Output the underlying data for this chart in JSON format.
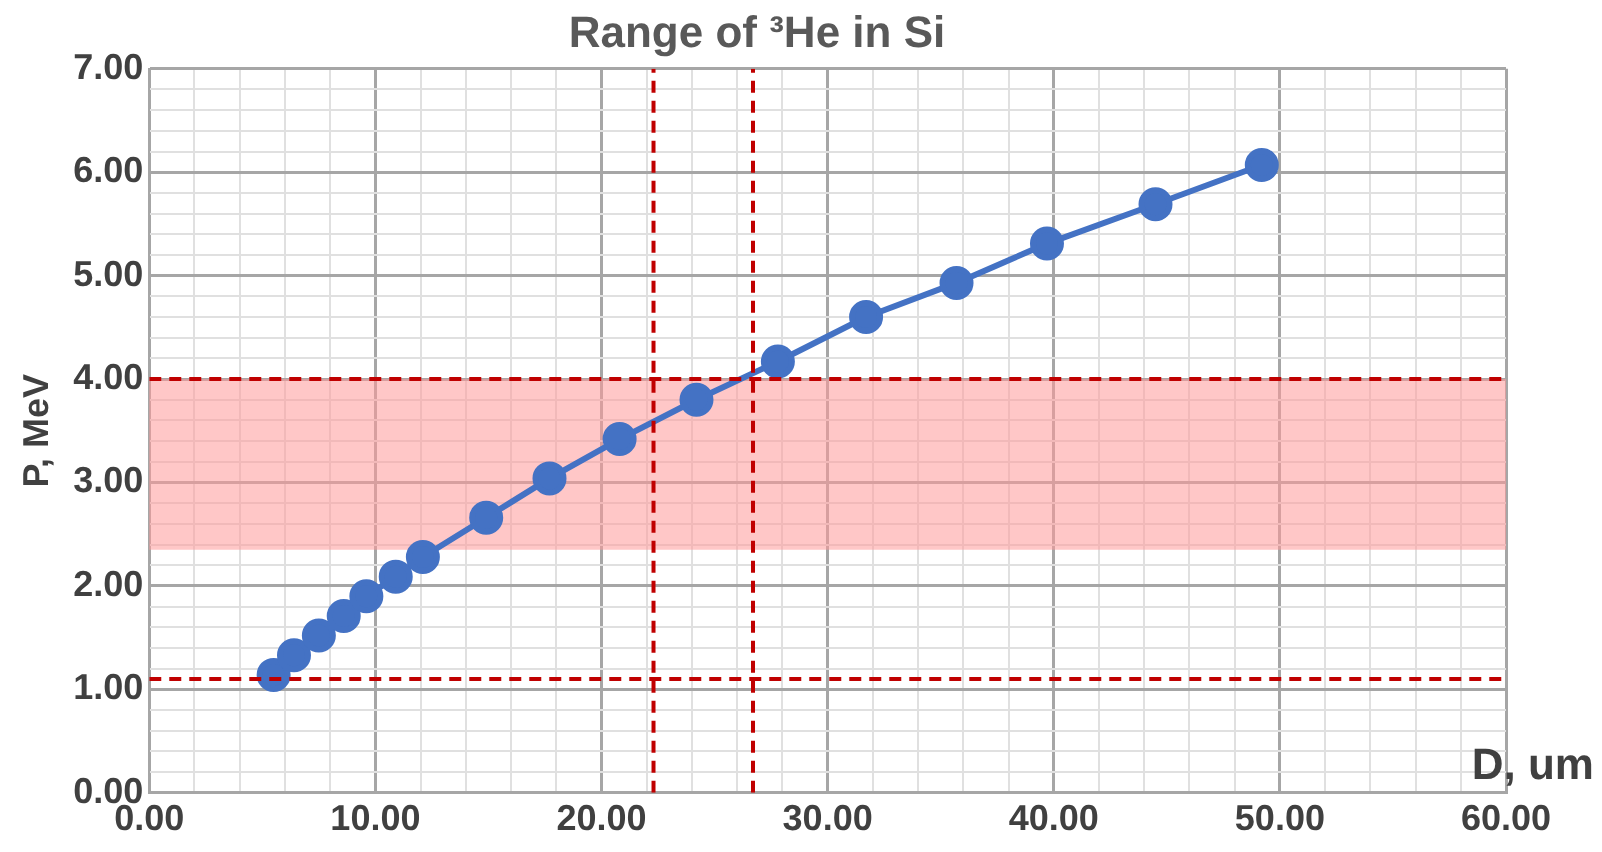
{
  "chart_data": {
    "type": "line",
    "title": "Range of ³He in Si",
    "xlabel": "D, um",
    "ylabel": "P, MeV",
    "x": [
      5.5,
      6.4,
      7.5,
      8.6,
      9.6,
      10.9,
      12.1,
      14.9,
      17.7,
      20.8,
      24.2,
      27.8,
      31.7,
      35.7,
      39.7,
      44.5,
      49.2
    ],
    "series": [
      {
        "color": "#4472c4",
        "values": [
          1.14,
          1.33,
          1.52,
          1.71,
          1.9,
          2.09,
          2.28,
          2.66,
          3.04,
          3.42,
          3.8,
          4.17,
          4.6,
          4.93,
          5.31,
          5.69,
          6.07
        ]
      }
    ],
    "xlim": [
      0,
      60
    ],
    "ylim": [
      0,
      7
    ],
    "xticks": [
      {
        "value": 0,
        "label": "0.00"
      },
      {
        "value": 2,
        "label": null
      },
      {
        "value": 4,
        "label": null
      },
      {
        "value": 6,
        "label": null
      },
      {
        "value": 8,
        "label": null
      },
      {
        "value": 10,
        "label": "10.00"
      },
      {
        "value": 12,
        "label": null
      },
      {
        "value": 14,
        "label": null
      },
      {
        "value": 16,
        "label": null
      },
      {
        "value": 18,
        "label": null
      },
      {
        "value": 20,
        "label": "20.00"
      },
      {
        "value": 22,
        "label": null
      },
      {
        "value": 24,
        "label": null
      },
      {
        "value": 26,
        "label": null
      },
      {
        "value": 28,
        "label": null
      },
      {
        "value": 30,
        "label": "30.00"
      },
      {
        "value": 32,
        "label": null
      },
      {
        "value": 34,
        "label": null
      },
      {
        "value": 36,
        "label": null
      },
      {
        "value": 38,
        "label": null
      },
      {
        "value": 40,
        "label": "40.00"
      },
      {
        "value": 42,
        "label": null
      },
      {
        "value": 44,
        "label": null
      },
      {
        "value": 46,
        "label": null
      },
      {
        "value": 48,
        "label": null
      },
      {
        "value": 50,
        "label": "50.00"
      },
      {
        "value": 52,
        "label": null
      },
      {
        "value": 54,
        "label": null
      },
      {
        "value": 56,
        "label": null
      },
      {
        "value": 58,
        "label": null
      },
      {
        "value": 60,
        "label": "60.00"
      }
    ],
    "yticks": [
      {
        "value": 0,
        "label": "0.00"
      },
      {
        "value": 0.2,
        "label": null
      },
      {
        "value": 0.4,
        "label": null
      },
      {
        "value": 0.6,
        "label": null
      },
      {
        "value": 0.8,
        "label": null
      },
      {
        "value": 1,
        "label": "1.00"
      },
      {
        "value": 1.2,
        "label": null
      },
      {
        "value": 1.4,
        "label": null
      },
      {
        "value": 1.6,
        "label": null
      },
      {
        "value": 1.8,
        "label": null
      },
      {
        "value": 2,
        "label": "2.00"
      },
      {
        "value": 2.2,
        "label": null
      },
      {
        "value": 2.4,
        "label": null
      },
      {
        "value": 2.6,
        "label": null
      },
      {
        "value": 2.8,
        "label": null
      },
      {
        "value": 3,
        "label": "3.00"
      },
      {
        "value": 3.2,
        "label": null
      },
      {
        "value": 3.4,
        "label": null
      },
      {
        "value": 3.6,
        "label": null
      },
      {
        "value": 3.8,
        "label": null
      },
      {
        "value": 4,
        "label": "4.00"
      },
      {
        "value": 4.2,
        "label": null
      },
      {
        "value": 4.4,
        "label": null
      },
      {
        "value": 4.6,
        "label": null
      },
      {
        "value": 4.8,
        "label": null
      },
      {
        "value": 5,
        "label": "5.00"
      },
      {
        "value": 5.2,
        "label": null
      },
      {
        "value": 5.4,
        "label": null
      },
      {
        "value": 5.6,
        "label": null
      },
      {
        "value": 5.8,
        "label": null
      },
      {
        "value": 6,
        "label": "6.00"
      },
      {
        "value": 6.2,
        "label": null
      },
      {
        "value": 6.4,
        "label": null
      },
      {
        "value": 6.6,
        "label": null
      },
      {
        "value": 6.8,
        "label": null
      },
      {
        "value": 7,
        "label": "7.00"
      }
    ],
    "ref_lines": [
      {
        "axis": "x",
        "value": 22.3,
        "color": "#c00000",
        "line_style": "dashed"
      },
      {
        "axis": "x",
        "value": 26.7,
        "color": "#c00000",
        "line_style": "dashed"
      },
      {
        "axis": "y",
        "value": 4,
        "color": "#c00000",
        "line_style": "dashed"
      },
      {
        "axis": "y",
        "value": 1.1,
        "color": "#c00000",
        "line_style": "dashed"
      }
    ],
    "bands": [
      {
        "axis": "y",
        "from": 2.35,
        "to": 4,
        "color": "#ff9999"
      }
    ],
    "grid": true,
    "legend": false,
    "marker": "circle",
    "line_style": "solid"
  }
}
